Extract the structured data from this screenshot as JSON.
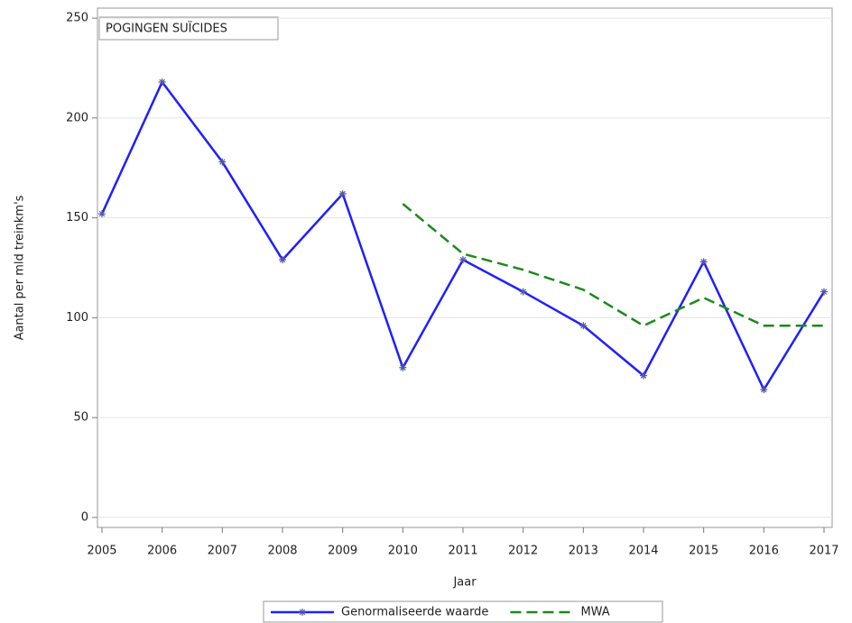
{
  "chart_data": {
    "type": "line",
    "annotation": "POGINGEN SUÏCIDES",
    "x_label": "Jaar",
    "y_label": "Aantal per mld treinkm's",
    "x": [
      2005,
      2006,
      2007,
      2008,
      2009,
      2010,
      2011,
      2012,
      2013,
      2014,
      2015,
      2016,
      2017
    ],
    "series": [
      {
        "name": "Genormaliseerde waarde",
        "color": "#1f1fff",
        "dash": false,
        "marker": "asterisk",
        "values": [
          152,
          218,
          178,
          129,
          162,
          75,
          129,
          113,
          96,
          71,
          128,
          64,
          113
        ]
      },
      {
        "name": "MWA",
        "color": "#1a8a1a",
        "dash": true,
        "marker": null,
        "values": [
          null,
          null,
          null,
          null,
          null,
          157,
          132,
          124,
          114,
          96,
          110,
          96,
          96
        ]
      }
    ],
    "xlim": [
      2004.925,
      2017.135
    ],
    "xticks": [
      2005,
      2006,
      2007,
      2008,
      2009,
      2010,
      2011,
      2012,
      2013,
      2014,
      2015,
      2016,
      2017
    ],
    "ylim": [
      -5,
      255
    ],
    "yticks": [
      0,
      50,
      100,
      150,
      200,
      250
    ],
    "grid": true,
    "legend": "bottom"
  }
}
